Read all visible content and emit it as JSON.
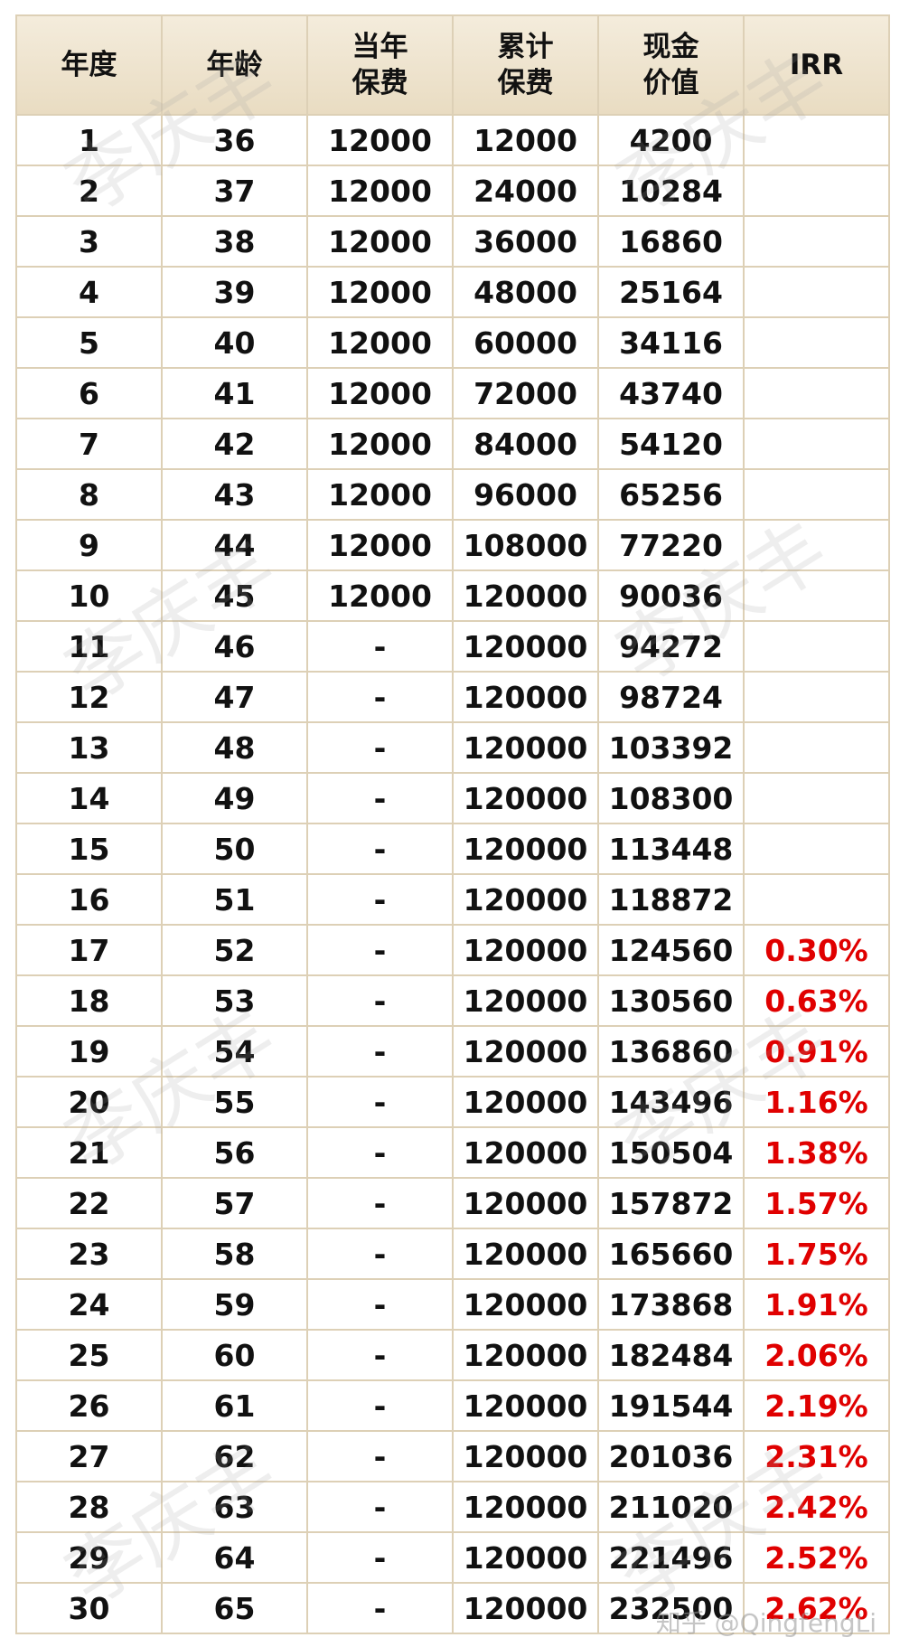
{
  "table": {
    "header": [
      [
        "年度"
      ],
      [
        "年龄"
      ],
      [
        "当年",
        "保费"
      ],
      [
        "累计",
        "保费"
      ],
      [
        "现金",
        "价值"
      ],
      [
        "IRR"
      ]
    ],
    "rows": [
      [
        1,
        36,
        12000,
        12000,
        4200
      ],
      [
        2,
        37,
        12000,
        24000,
        10284
      ],
      [
        3,
        38,
        12000,
        36000,
        16860
      ],
      [
        4,
        39,
        12000,
        48000,
        25164
      ],
      [
        5,
        40,
        12000,
        60000,
        34116
      ],
      [
        6,
        41,
        12000,
        72000,
        43740
      ],
      [
        7,
        42,
        12000,
        84000,
        54120
      ],
      [
        8,
        43,
        12000,
        96000,
        65256
      ],
      [
        9,
        44,
        12000,
        108000,
        77220
      ],
      [
        10,
        45,
        12000,
        120000,
        90036
      ],
      [
        11,
        46,
        "-",
        120000,
        94272
      ],
      [
        12,
        47,
        "-",
        120000,
        98724
      ],
      [
        13,
        48,
        "-",
        120000,
        103392
      ],
      [
        14,
        49,
        "-",
        120000,
        108300
      ],
      [
        15,
        50,
        "-",
        120000,
        113448
      ],
      [
        16,
        51,
        "-",
        120000,
        118872
      ],
      [
        17,
        52,
        "-",
        120000,
        124560,
        "0.30%"
      ],
      [
        18,
        53,
        "-",
        120000,
        130560,
        "0.63%"
      ],
      [
        19,
        54,
        "-",
        120000,
        136860,
        "0.91%"
      ],
      [
        20,
        55,
        "-",
        120000,
        143496,
        "1.16%"
      ],
      [
        21,
        56,
        "-",
        120000,
        150504,
        "1.38%"
      ],
      [
        22,
        57,
        "-",
        120000,
        157872,
        "1.57%"
      ],
      [
        23,
        58,
        "-",
        120000,
        165660,
        "1.75%"
      ],
      [
        24,
        59,
        "-",
        120000,
        173868,
        "1.91%"
      ],
      [
        25,
        60,
        "-",
        120000,
        182484,
        "2.06%"
      ],
      [
        26,
        61,
        "-",
        120000,
        191544,
        "2.19%"
      ],
      [
        27,
        62,
        "-",
        120000,
        201036,
        "2.31%"
      ],
      [
        28,
        63,
        "-",
        120000,
        211020,
        "2.42%"
      ],
      [
        29,
        64,
        "-",
        120000,
        221496,
        "2.52%"
      ],
      [
        30,
        65,
        "-",
        120000,
        232500,
        "2.62%"
      ]
    ]
  },
  "watermark": "李庆丰",
  "credit": "知乎 @QingfengLi"
}
